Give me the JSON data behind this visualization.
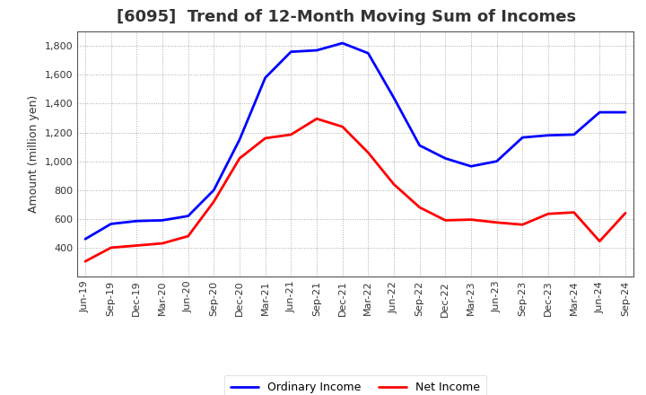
{
  "title": "[6095]  Trend of 12-Month Moving Sum of Incomes",
  "ylabel": "Amount (million yen)",
  "fig_bg_color": "#ffffff",
  "plot_bg_color": "#ffffff",
  "x_labels": [
    "Jun-19",
    "Sep-19",
    "Dec-19",
    "Mar-20",
    "Jun-20",
    "Sep-20",
    "Dec-20",
    "Mar-21",
    "Jun-21",
    "Sep-21",
    "Dec-21",
    "Mar-22",
    "Jun-22",
    "Sep-22",
    "Dec-22",
    "Mar-23",
    "Jun-23",
    "Sep-23",
    "Dec-23",
    "Mar-24",
    "Jun-24",
    "Sep-24"
  ],
  "ordinary_income": [
    460,
    565,
    585,
    590,
    620,
    800,
    1150,
    1580,
    1760,
    1770,
    1820,
    1750,
    1440,
    1110,
    1020,
    965,
    1000,
    1165,
    1180,
    1185,
    1340,
    1340
  ],
  "net_income": [
    305,
    400,
    415,
    430,
    480,
    720,
    1020,
    1160,
    1185,
    1295,
    1240,
    1060,
    840,
    680,
    590,
    595,
    575,
    560,
    635,
    645,
    445,
    640
  ],
  "ordinary_color": "#0000ff",
  "net_color": "#ff0000",
  "ylim_min": 200,
  "ylim_max": 1900,
  "yticks": [
    400,
    600,
    800,
    1000,
    1200,
    1400,
    1600,
    1800
  ],
  "legend_ordinary": "Ordinary Income",
  "legend_net": "Net Income",
  "line_width": 2.0,
  "title_fontsize": 13,
  "axis_label_fontsize": 9,
  "tick_fontsize": 8,
  "grid_color": "#aaaaaa",
  "grid_style": "dotted"
}
